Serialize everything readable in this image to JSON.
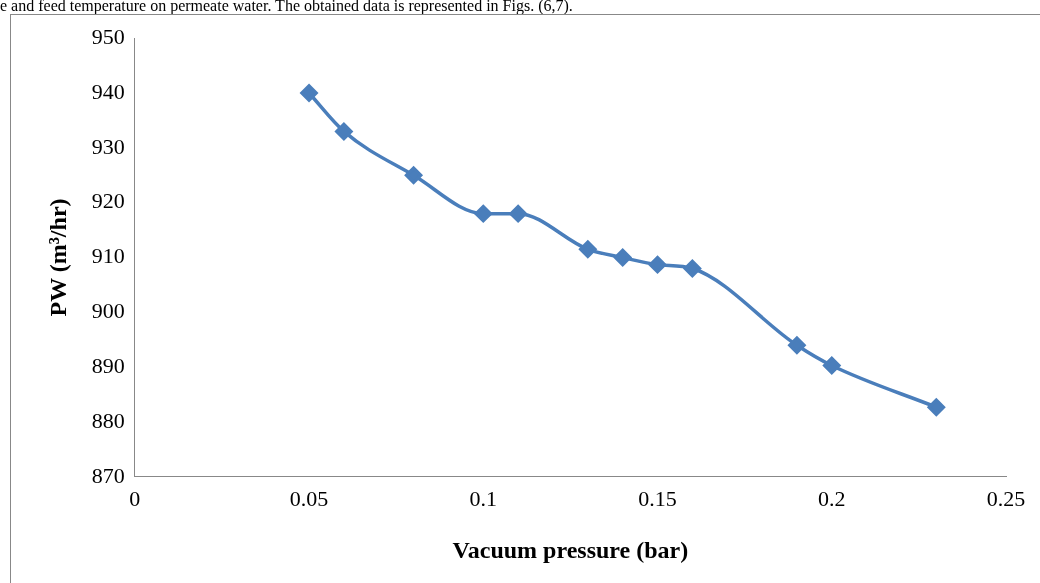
{
  "chart_data": {
    "type": "line",
    "annotations": [
      "e and feed temperature on permeate water. The obtained data is represented in Figs. (6,7)."
    ],
    "xlabel": "Vacuum pressure (bar)",
    "ylabel": "PW (m³/hr)",
    "x": [
      0.05,
      0.06,
      0.08,
      0.1,
      0.11,
      0.13,
      0.14,
      0.15,
      0.16,
      0.19,
      0.2,
      0.23
    ],
    "series": [
      {
        "color": "#4a7ebb",
        "values": [
          940,
          933,
          925,
          918,
          918,
          911.5,
          910,
          908.7,
          908,
          894,
          890.3,
          882.7
        ]
      }
    ],
    "xlim": [
      0,
      0.25
    ],
    "xticks": [
      0,
      0.05,
      0.1,
      0.15,
      0.2,
      0.25
    ],
    "ylim": [
      870,
      950
    ],
    "yticks": [
      870,
      880,
      890,
      900,
      910,
      920,
      930,
      940,
      950
    ],
    "grid": false,
    "legend": false,
    "marker": "diamond",
    "line_style": "solid"
  }
}
